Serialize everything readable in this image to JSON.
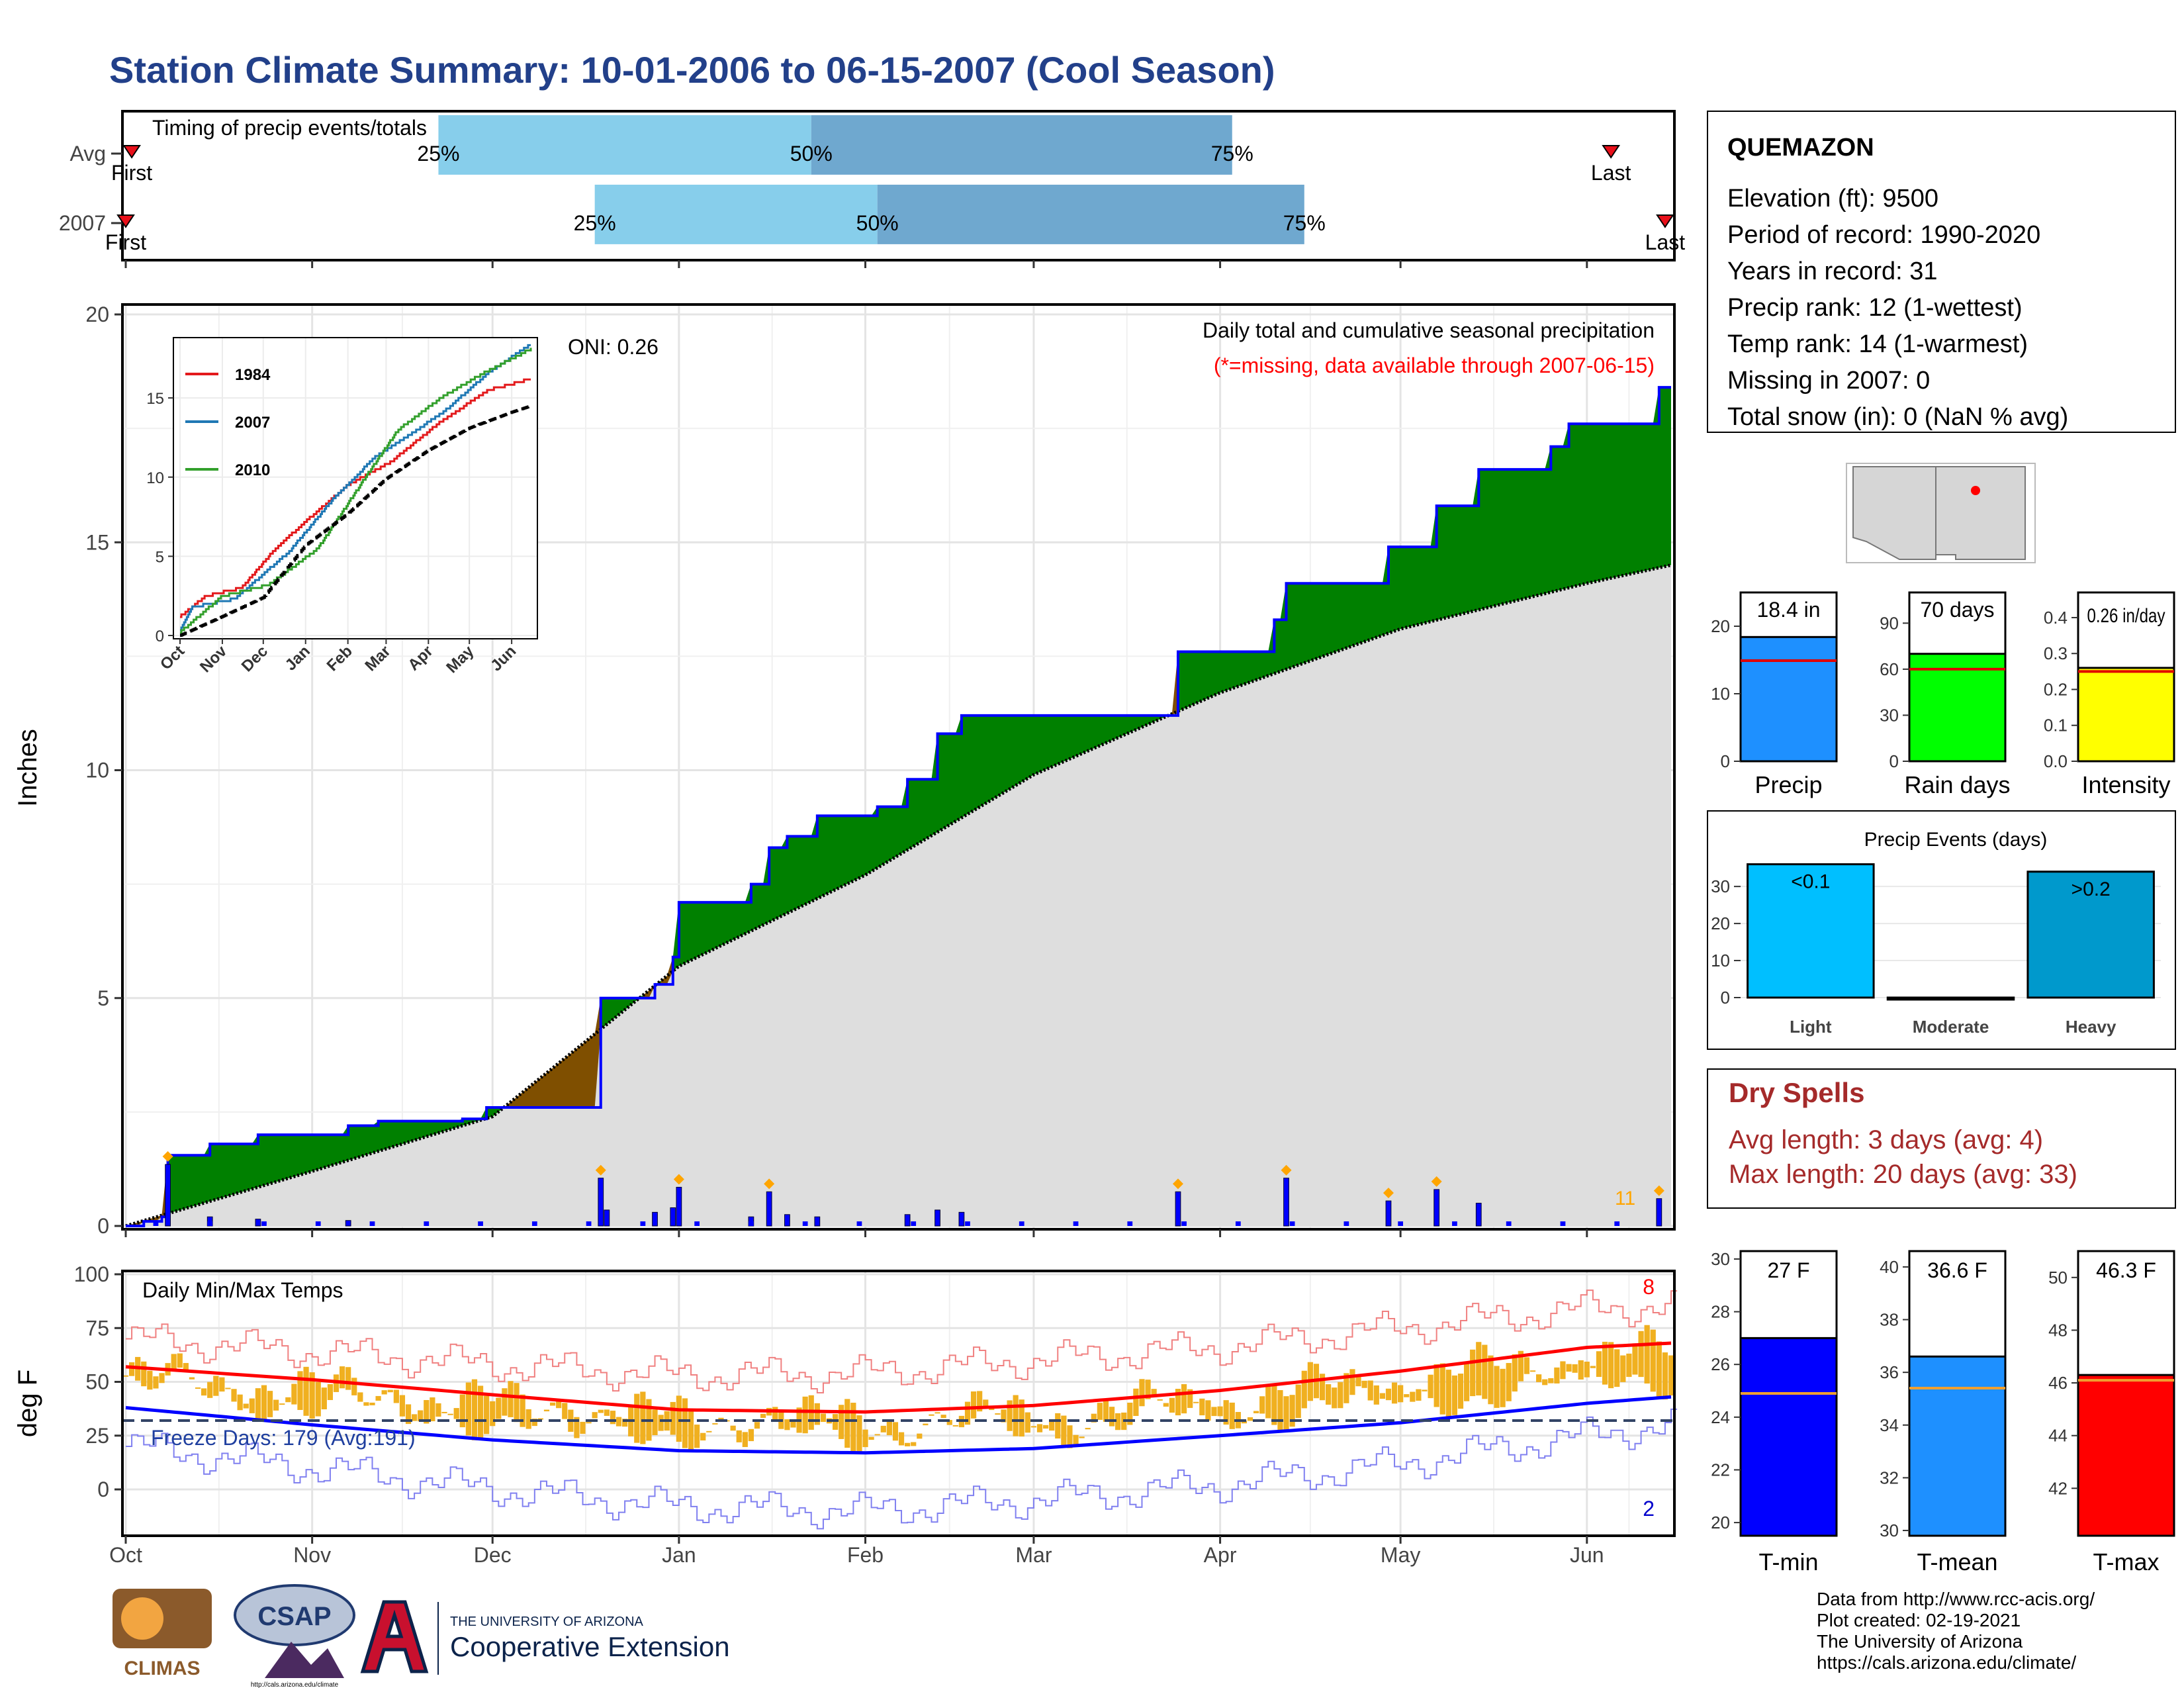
{
  "title": "Station Climate Summary: 10-01-2006 to 06-15-2007 (Cool Season)",
  "timing": {
    "title": "Timing of precip events/totals",
    "rows": [
      {
        "label": "Avg",
        "first_date": "2006-10-02",
        "q25_date": "2006-11-22",
        "q50_date": "2007-01-23",
        "q75_date": "2007-04-03",
        "last_date": "2007-06-05"
      },
      {
        "label": "2007",
        "first_date": "2006-10-01",
        "q25_date": "2006-12-18",
        "q50_date": "2007-02-03",
        "q75_date": "2007-04-15",
        "last_date": "2007-06-14"
      }
    ],
    "first_label": "First",
    "last_label": "Last",
    "q25_label": "25%",
    "q50_label": "50%",
    "q75_label": "75%",
    "colors": {
      "early": "#87ceeb",
      "late": "#6fa8cf",
      "marker": "#e8101a"
    }
  },
  "precip_panel": {
    "ylabel": "Inches",
    "oni_label": "ONI: 0.26",
    "subtitle": "Daily total and cumulative seasonal precipitation",
    "missing_note": "(*=missing, data available through 2007-06-15)",
    "count_label": "11",
    "yticks": [
      "0",
      "5",
      "10",
      "15",
      "20"
    ],
    "xticks": [
      "Oct",
      "Nov",
      "Dec",
      "Jan",
      "Feb",
      "Mar",
      "Apr",
      "May",
      "Jun"
    ]
  },
  "inset": {
    "legend": [
      "1984",
      "2007",
      "2010"
    ],
    "yticks": [
      "0",
      "5",
      "10",
      "15"
    ],
    "xticks": [
      "Oct",
      "Nov",
      "Dec",
      "Jan",
      "Feb",
      "Mar",
      "Apr",
      "May",
      "Jun"
    ]
  },
  "temp_panel": {
    "ylabel": "deg F",
    "label": "Daily Min/Max Temps",
    "freeze_label": "Freeze Days: 179 (Avg:191)",
    "hot_count": "8",
    "cold_count": "2",
    "yticks": [
      "0",
      "25",
      "50",
      "75",
      "100"
    ],
    "xticks": [
      "Oct",
      "Nov",
      "Dec",
      "Jan",
      "Feb",
      "Mar",
      "Apr",
      "May",
      "Jun"
    ]
  },
  "station": {
    "name": "QUEMAZON",
    "lines": [
      "Elevation (ft): 9500",
      "Period of record: 1990-2020",
      "Years in record: 31",
      "Precip rank: 12 (1-wettest)",
      "Temp rank: 14 (1-warmest)",
      "Missing in 2007: 0",
      "Total snow (in): 0 (NaN % avg)"
    ]
  },
  "summary_bars": [
    {
      "label": "Precip",
      "value_text": "18.4 in",
      "value": 18.4,
      "avg": 14.9,
      "ymax": 25,
      "yticks": [
        "0",
        "10",
        "20"
      ],
      "color": "#1e90ff"
    },
    {
      "label": "Rain days",
      "value_text": "70 days",
      "value": 70,
      "avg": 60,
      "ymax": 110,
      "yticks": [
        "0",
        "30",
        "60",
        "90"
      ],
      "color": "#00ff00"
    },
    {
      "label": "Intensity",
      "value_text": "0.26 in/day",
      "value": 0.26,
      "avg": 0.25,
      "ymax": 0.47,
      "yticks": [
        "0.0",
        "0.1",
        "0.2",
        "0.3",
        "0.4"
      ],
      "color": "#ffff00"
    }
  ],
  "precip_events": {
    "title": "Precip Events (days)",
    "categories": [
      "Light",
      "Moderate",
      "Heavy"
    ],
    "labels": [
      "<0.1",
      "",
      ">0.2"
    ],
    "values": [
      36,
      0,
      34
    ],
    "yticks": [
      "0",
      "10",
      "20",
      "30"
    ],
    "colors": [
      "#00bfff",
      "#888888",
      "#0099cc"
    ]
  },
  "dry_spells": {
    "title": "Dry Spells",
    "avg_line": "Avg length: 3 days (avg: 4)",
    "max_line": "Max length: 20 days (avg: 33)",
    "color": "#a52a2a"
  },
  "temp_bars": [
    {
      "label": "T-min",
      "value_text": "27 F",
      "value": 27.0,
      "avg": 24.9,
      "ymin": 19.5,
      "ymax": 30.3,
      "yticks": [
        "20",
        "22",
        "24",
        "26",
        "28",
        "30"
      ],
      "color": "#0000ff"
    },
    {
      "label": "T-mean",
      "value_text": "36.6 F",
      "value": 36.6,
      "avg": 35.4,
      "ymin": 29.8,
      "ymax": 40.6,
      "yticks": [
        "30",
        "32",
        "34",
        "36",
        "38",
        "40"
      ],
      "color": "#1e90ff"
    },
    {
      "label": "T-max",
      "value_text": "46.3 F",
      "value": 46.3,
      "avg": 46.1,
      "ymin": 40.2,
      "ymax": 51.0,
      "yticks": [
        "42",
        "44",
        "46",
        "48",
        "50"
      ],
      "color": "#ff0000"
    }
  ],
  "logos": {
    "climas": "CLIMAS",
    "csap": "CSAP",
    "csap_url": "http://cals.arizona.edu/climate",
    "ua_small": "THE UNIVERSITY OF ARIZONA",
    "ua_big": "Cooperative Extension"
  },
  "credits": [
    "Data from http://www.rcc-acis.org/",
    "Plot created: 02-19-2021",
    "The University of Arizona",
    "https://cals.arizona.edu/climate/"
  ],
  "chart_data": [
    {
      "type": "area",
      "title": "Daily total and cumulative seasonal precipitation",
      "ylabel": "Inches",
      "ylim": [
        0,
        20
      ],
      "x_range": [
        "2006-10-01",
        "2007-06-15"
      ],
      "series": [
        {
          "name": "2007",
          "points": [
            [
              "2006-10-01",
              0
            ],
            [
              "2006-10-04",
              0.1
            ],
            [
              "2006-10-07",
              0.2
            ],
            [
              "2006-10-08",
              1.55
            ],
            [
              "2006-10-14",
              1.55
            ],
            [
              "2006-10-15",
              1.8
            ],
            [
              "2006-10-22",
              1.8
            ],
            [
              "2006-10-23",
              2.0
            ],
            [
              "2006-11-06",
              2.0
            ],
            [
              "2006-11-07",
              2.2
            ],
            [
              "2006-11-12",
              2.3
            ],
            [
              "2006-11-26",
              2.35
            ],
            [
              "2006-11-30",
              2.6
            ],
            [
              "2006-12-18",
              2.6
            ],
            [
              "2006-12-19",
              5.0
            ],
            [
              "2006-12-28",
              5.3
            ],
            [
              "2006-12-31",
              5.9
            ],
            [
              "2007-01-01",
              7.1
            ],
            [
              "2007-01-13",
              7.5
            ],
            [
              "2007-01-16",
              8.3
            ],
            [
              "2007-01-19",
              8.55
            ],
            [
              "2007-01-24",
              9.0
            ],
            [
              "2007-02-03",
              9.2
            ],
            [
              "2007-02-08",
              9.8
            ],
            [
              "2007-02-13",
              10.8
            ],
            [
              "2007-02-17",
              11.2
            ],
            [
              "2007-03-25",
              12.6
            ],
            [
              "2007-04-10",
              13.3
            ],
            [
              "2007-04-12",
              14.1
            ],
            [
              "2007-04-29",
              14.9
            ],
            [
              "2007-05-07",
              15.8
            ],
            [
              "2007-05-14",
              16.6
            ],
            [
              "2007-05-26",
              17.1
            ],
            [
              "2007-05-29",
              17.6
            ],
            [
              "2007-06-12",
              17.6
            ],
            [
              "2007-06-13",
              18.4
            ],
            [
              "2007-06-15",
              18.4
            ]
          ]
        },
        {
          "name": "Avg",
          "points": [
            [
              "2006-10-01",
              0
            ],
            [
              "2006-11-01",
              1.2
            ],
            [
              "2006-12-01",
              2.4
            ],
            [
              "2007-01-01",
              5.7
            ],
            [
              "2007-02-01",
              7.7
            ],
            [
              "2007-03-01",
              9.9
            ],
            [
              "2007-04-01",
              11.7
            ],
            [
              "2007-05-01",
              13.1
            ],
            [
              "2007-06-01",
              14.1
            ],
            [
              "2007-06-15",
              14.5
            ]
          ]
        }
      ],
      "daily_precip_in": [
        [
          "2006-10-08",
          1.35
        ],
        [
          "2006-10-15",
          0.2
        ],
        [
          "2006-10-23",
          0.15
        ],
        [
          "2006-11-07",
          0.12
        ],
        [
          "2006-12-19",
          1.05
        ],
        [
          "2006-12-20",
          0.35
        ],
        [
          "2006-12-28",
          0.3
        ],
        [
          "2006-12-31",
          0.4
        ],
        [
          "2007-01-01",
          0.85
        ],
        [
          "2007-01-13",
          0.2
        ],
        [
          "2007-01-16",
          0.75
        ],
        [
          "2007-01-19",
          0.25
        ],
        [
          "2007-01-24",
          0.2
        ],
        [
          "2007-02-08",
          0.25
        ],
        [
          "2007-02-13",
          0.35
        ],
        [
          "2007-02-17",
          0.3
        ],
        [
          "2007-03-25",
          0.75
        ],
        [
          "2007-04-12",
          1.05
        ],
        [
          "2007-04-29",
          0.55
        ],
        [
          "2007-05-07",
          0.8
        ],
        [
          "2007-05-14",
          0.5
        ],
        [
          "2007-06-13",
          0.6
        ]
      ]
    },
    {
      "type": "line",
      "title": "",
      "ylim": [
        0,
        18
      ],
      "x_range": [
        "2006-10-01",
        "2007-06-15"
      ],
      "series": [
        {
          "name": "1984",
          "color": "#e31a1c",
          "points": [
            [
              "2006-10-01",
              1.2
            ],
            [
              "2006-10-20",
              2.5
            ],
            [
              "2006-11-15",
              3.0
            ],
            [
              "2006-12-10",
              5.5
            ],
            [
              "2007-01-05",
              7.5
            ],
            [
              "2007-02-01",
              9.5
            ],
            [
              "2007-03-05",
              11.0
            ],
            [
              "2007-04-10",
              13.5
            ],
            [
              "2007-05-15",
              15.5
            ],
            [
              "2007-06-15",
              16.2
            ]
          ]
        },
        {
          "name": "2007",
          "color": "#1f78b4",
          "points": [
            [
              "2006-10-01",
              0.3
            ],
            [
              "2006-10-10",
              1.8
            ],
            [
              "2006-11-10",
              2.3
            ],
            [
              "2006-12-20",
              5.3
            ],
            [
              "2007-01-20",
              8.5
            ],
            [
              "2007-02-20",
              11.2
            ],
            [
              "2007-04-12",
              14.1
            ],
            [
              "2007-05-15",
              16.6
            ],
            [
              "2007-06-15",
              18.4
            ]
          ]
        },
        {
          "name": "2010",
          "color": "#33a02c",
          "points": [
            [
              "2006-10-01",
              0.2
            ],
            [
              "2006-11-01",
              2.5
            ],
            [
              "2006-12-05",
              3.2
            ],
            [
              "2007-01-10",
              5.5
            ],
            [
              "2007-02-10",
              9.5
            ],
            [
              "2007-03-10",
              13.0
            ],
            [
              "2007-04-10",
              15.0
            ],
            [
              "2007-05-10",
              16.5
            ],
            [
              "2007-06-15",
              18.1
            ]
          ]
        },
        {
          "name": "Avg",
          "color": "#000000",
          "points": [
            [
              "2006-10-01",
              0
            ],
            [
              "2006-11-01",
              1.2
            ],
            [
              "2006-12-01",
              2.4
            ],
            [
              "2007-01-01",
              5.7
            ],
            [
              "2007-02-01",
              7.7
            ],
            [
              "2007-03-01",
              9.9
            ],
            [
              "2007-04-01",
              11.7
            ],
            [
              "2007-05-01",
              13.1
            ],
            [
              "2007-06-01",
              14.1
            ],
            [
              "2007-06-15",
              14.5
            ]
          ]
        }
      ]
    },
    {
      "type": "line",
      "title": "Daily Min/Max Temps",
      "ylabel": "deg F",
      "ylim": [
        -20,
        100
      ],
      "x_range": [
        "2006-10-01",
        "2007-06-15"
      ],
      "series": [
        {
          "name": "avg_max",
          "color": "#ff0000",
          "points": [
            [
              "2006-10-01",
              57
            ],
            [
              "2006-11-01",
              51
            ],
            [
              "2006-12-01",
              44
            ],
            [
              "2007-01-01",
              37
            ],
            [
              "2007-02-01",
              36
            ],
            [
              "2007-03-01",
              39
            ],
            [
              "2007-04-01",
              46
            ],
            [
              "2007-05-01",
              55
            ],
            [
              "2007-06-01",
              66
            ],
            [
              "2007-06-15",
              68
            ]
          ]
        },
        {
          "name": "avg_min",
          "color": "#0000ff",
          "points": [
            [
              "2006-10-01",
              38
            ],
            [
              "2006-11-01",
              30
            ],
            [
              "2006-12-01",
              23
            ],
            [
              "2007-01-01",
              18
            ],
            [
              "2007-02-01",
              17
            ],
            [
              "2007-03-01",
              19
            ],
            [
              "2007-04-01",
              25
            ],
            [
              "2007-05-01",
              31
            ],
            [
              "2007-06-01",
              40
            ],
            [
              "2007-06-15",
              43
            ]
          ]
        },
        {
          "name": "record_max",
          "color": "#f08080",
          "points": [
            [
              "2006-10-01",
              70
            ],
            [
              "2006-11-01",
              64
            ],
            [
              "2006-12-01",
              58
            ],
            [
              "2007-01-01",
              53
            ],
            [
              "2007-02-01",
              54
            ],
            [
              "2007-03-01",
              60
            ],
            [
              "2007-04-01",
              66
            ],
            [
              "2007-05-01",
              75
            ],
            [
              "2007-06-01",
              84
            ],
            [
              "2007-06-15",
              85
            ]
          ]
        },
        {
          "name": "record_min",
          "color": "#8080f0",
          "points": [
            [
              "2006-10-01",
              20
            ],
            [
              "2006-11-01",
              10
            ],
            [
              "2006-12-01",
              0
            ],
            [
              "2007-01-01",
              -8
            ],
            [
              "2007-02-01",
              -10
            ],
            [
              "2007-03-01",
              -5
            ],
            [
              "2007-04-01",
              2
            ],
            [
              "2007-05-01",
              12
            ],
            [
              "2007-06-01",
              25
            ],
            [
              "2007-06-15",
              30
            ]
          ]
        }
      ],
      "daily_range_note": "orange bars span each day's min to max temperature",
      "freeze_threshold_f": 32
    },
    {
      "type": "bar",
      "title": "Precip Events (days)",
      "categories": [
        "Light",
        "Moderate",
        "Heavy"
      ],
      "values": [
        36,
        0,
        34
      ]
    }
  ]
}
